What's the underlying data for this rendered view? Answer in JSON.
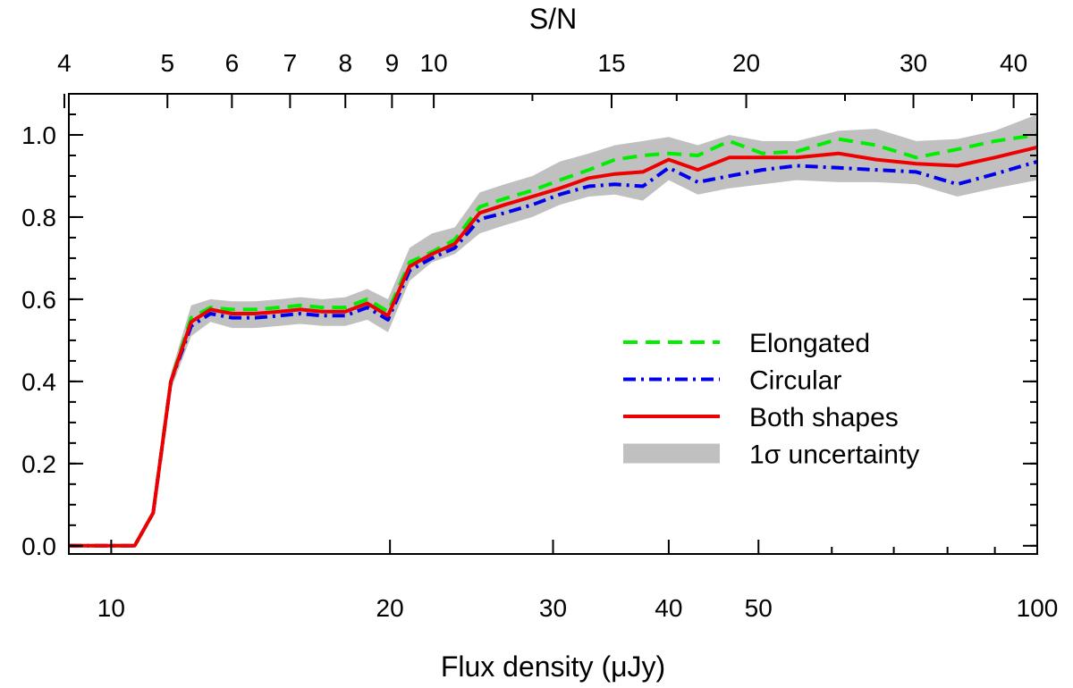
{
  "chart_data": {
    "type": "line",
    "xlabel": "Flux density (μJy)",
    "x2label": "S/N",
    "x_scale": "log",
    "xlim": [
      9,
      100
    ],
    "ylim": [
      -0.02,
      1.1
    ],
    "grid": false,
    "legend_position": "center-right",
    "x_ticks_major": [
      {
        "value": 10,
        "label": "10"
      },
      {
        "value": 20,
        "label": "20"
      },
      {
        "value": 30,
        "label": "30"
      },
      {
        "value": 40,
        "label": "40"
      },
      {
        "value": 50,
        "label": "50"
      },
      {
        "value": 100,
        "label": "100"
      }
    ],
    "x_ticks_minor": [
      60,
      70,
      80,
      90
    ],
    "y_ticks": [
      {
        "value": 0.0,
        "label": "0.0"
      },
      {
        "value": 0.2,
        "label": "0.2"
      },
      {
        "value": 0.4,
        "label": "0.4"
      },
      {
        "value": 0.6,
        "label": "0.6"
      },
      {
        "value": 0.8,
        "label": "0.8"
      },
      {
        "value": 1.0,
        "label": "1.0"
      }
    ],
    "y_minor_step": 0.05,
    "top_ticks_major": [
      {
        "flux": 8.9,
        "label": "4"
      },
      {
        "flux": 11.5,
        "label": "5"
      },
      {
        "flux": 13.5,
        "label": "6"
      },
      {
        "flux": 15.6,
        "label": "7"
      },
      {
        "flux": 17.9,
        "label": "8"
      },
      {
        "flux": 20.1,
        "label": "9"
      },
      {
        "flux": 22.3,
        "label": "10"
      },
      {
        "flux": 34.7,
        "label": "15"
      },
      {
        "flux": 48.5,
        "label": "20"
      },
      {
        "flux": 73.5,
        "label": "30"
      },
      {
        "flux": 94.3,
        "label": "40"
      }
    ],
    "top_ticks_minor": [
      28.5,
      40.8,
      62.0,
      85.0
    ],
    "x": [
      9.0,
      9.8,
      10.6,
      11.1,
      11.6,
      12.2,
      12.8,
      13.5,
      14.3,
      15.2,
      16.0,
      16.9,
      17.9,
      18.9,
      19.9,
      21.0,
      22.2,
      23.5,
      25.0,
      26.6,
      28.5,
      30.5,
      32.8,
      35.0,
      37.5,
      40.0,
      43.0,
      46.5,
      50.5,
      55.0,
      61.0,
      67.0,
      74.0,
      82.0,
      90.0,
      100.0
    ],
    "series": [
      {
        "name": "1σ uncertainty",
        "kind": "band",
        "color": "#c0c0c0",
        "lower": [
          0.0,
          0.0,
          0.0,
          0.07,
          0.38,
          0.51,
          0.545,
          0.53,
          0.53,
          0.535,
          0.54,
          0.535,
          0.535,
          0.55,
          0.52,
          0.645,
          0.69,
          0.71,
          0.76,
          0.78,
          0.8,
          0.83,
          0.85,
          0.855,
          0.84,
          0.89,
          0.855,
          0.87,
          0.88,
          0.89,
          0.885,
          0.885,
          0.88,
          0.85,
          0.87,
          0.89
        ],
        "upper": [
          0.0,
          0.0,
          0.0,
          0.09,
          0.42,
          0.585,
          0.6,
          0.595,
          0.595,
          0.6,
          0.605,
          0.6,
          0.605,
          0.625,
          0.6,
          0.725,
          0.76,
          0.775,
          0.86,
          0.88,
          0.9,
          0.935,
          0.955,
          0.975,
          0.985,
          0.995,
          0.975,
          1.0,
          0.985,
          0.985,
          1.01,
          1.015,
          0.985,
          0.99,
          1.01,
          1.05
        ]
      },
      {
        "name": "Elongated",
        "kind": "line",
        "color": "#00ee00",
        "dash": "dashed",
        "values": [
          0.0,
          0.0,
          0.0,
          0.08,
          0.4,
          0.555,
          0.58,
          0.575,
          0.575,
          0.58,
          0.585,
          0.58,
          0.58,
          0.6,
          0.57,
          0.69,
          0.715,
          0.745,
          0.825,
          0.845,
          0.865,
          0.89,
          0.915,
          0.94,
          0.95,
          0.955,
          0.95,
          0.985,
          0.955,
          0.96,
          0.99,
          0.975,
          0.945,
          0.965,
          0.985,
          1.0
        ]
      },
      {
        "name": "Circular",
        "kind": "line",
        "color": "#0000ee",
        "dash": "dashdot",
        "values": [
          0.0,
          0.0,
          0.0,
          0.08,
          0.4,
          0.535,
          0.565,
          0.555,
          0.555,
          0.56,
          0.565,
          0.56,
          0.56,
          0.58,
          0.55,
          0.67,
          0.7,
          0.725,
          0.795,
          0.81,
          0.83,
          0.855,
          0.875,
          0.88,
          0.875,
          0.92,
          0.885,
          0.9,
          0.915,
          0.925,
          0.92,
          0.915,
          0.91,
          0.88,
          0.905,
          0.935
        ]
      },
      {
        "name": "Both shapes",
        "kind": "line",
        "color": "#ee0000",
        "dash": "solid",
        "values": [
          0.0,
          0.0,
          0.0,
          0.08,
          0.4,
          0.545,
          0.575,
          0.565,
          0.565,
          0.57,
          0.575,
          0.57,
          0.57,
          0.59,
          0.56,
          0.68,
          0.71,
          0.735,
          0.81,
          0.83,
          0.85,
          0.87,
          0.895,
          0.905,
          0.91,
          0.94,
          0.915,
          0.945,
          0.945,
          0.945,
          0.955,
          0.94,
          0.93,
          0.925,
          0.945,
          0.97
        ]
      }
    ],
    "legend": [
      {
        "label": "Elongated",
        "kind": "line",
        "color": "#00ee00",
        "dash": "dashed"
      },
      {
        "label": "Circular",
        "kind": "line",
        "color": "#0000ee",
        "dash": "dashdot"
      },
      {
        "label": "Both shapes",
        "kind": "line",
        "color": "#ee0000",
        "dash": "solid"
      },
      {
        "label": "1σ uncertainty",
        "kind": "band",
        "color": "#c0c0c0"
      }
    ]
  }
}
